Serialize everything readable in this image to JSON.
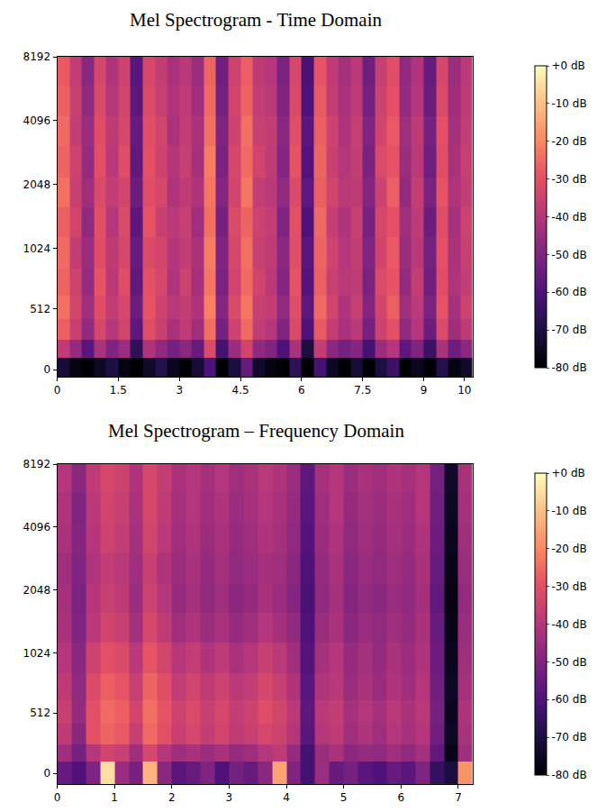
{
  "chart_data": [
    {
      "type": "heatmap",
      "title": "Mel Spectrogram - Time Domain",
      "x_edges": [
        0,
        0.3,
        0.6,
        0.9,
        1.2,
        1.5,
        1.8,
        2.1,
        2.4,
        2.7,
        3,
        3.3,
        3.6,
        3.9,
        4.2,
        4.5,
        4.8,
        5.1,
        5.4,
        5.7,
        6,
        6.3,
        6.6,
        6.9,
        7.2,
        7.5,
        7.8,
        8.1,
        8.4,
        8.7,
        9,
        9.3,
        9.6,
        9.9,
        10.2
      ],
      "y_edges": [
        -60,
        100,
        250,
        420,
        620,
        850,
        1150,
        1600,
        2200,
        3100,
        4300,
        6000,
        8192
      ],
      "z": [
        [
          -72,
          -78,
          -80,
          -75,
          -70,
          -78,
          -80,
          -74,
          -68,
          -76,
          -80,
          -72,
          -60,
          -80,
          -70,
          -55,
          -74,
          -78,
          -80,
          -66,
          -80,
          -62,
          -75,
          -80,
          -72,
          -80,
          -70,
          -64,
          -80,
          -76,
          -80,
          -68,
          -78,
          -74
        ],
        [
          -38,
          -46,
          -58,
          -42,
          -50,
          -45,
          -66,
          -41,
          -47,
          -52,
          -48,
          -55,
          -32,
          -62,
          -45,
          -34,
          -47,
          -50,
          -60,
          -42,
          -70,
          -37,
          -48,
          -52,
          -49,
          -62,
          -45,
          -40,
          -57,
          -50,
          -64,
          -42,
          -54,
          -48
        ],
        [
          -27,
          -36,
          -47,
          -33,
          -40,
          -34,
          -57,
          -31,
          -36,
          -42,
          -38,
          -44,
          -24,
          -52,
          -35,
          -25,
          -37,
          -40,
          -50,
          -32,
          -60,
          -28,
          -37,
          -42,
          -39,
          -52,
          -35,
          -30,
          -47,
          -40,
          -54,
          -32,
          -44,
          -38
        ],
        [
          -24,
          -34,
          -44,
          -31,
          -37,
          -33,
          -54,
          -29,
          -35,
          -39,
          -37,
          -41,
          -21,
          -49,
          -32,
          -23,
          -36,
          -37,
          -47,
          -31,
          -57,
          -25,
          -34,
          -41,
          -36,
          -49,
          -34,
          -27,
          -44,
          -39,
          -51,
          -29,
          -43,
          -35
        ],
        [
          -26,
          -35,
          -46,
          -29,
          -39,
          -31,
          -56,
          -30,
          -33,
          -41,
          -35,
          -43,
          -23,
          -51,
          -34,
          -25,
          -34,
          -39,
          -49,
          -29,
          -59,
          -27,
          -36,
          -39,
          -38,
          -51,
          -32,
          -29,
          -46,
          -37,
          -53,
          -31,
          -41,
          -37
        ],
        [
          -25,
          -37,
          -45,
          -31,
          -38,
          -33,
          -55,
          -32,
          -34,
          -40,
          -37,
          -42,
          -22,
          -50,
          -33,
          -24,
          -36,
          -38,
          -48,
          -31,
          -58,
          -26,
          -35,
          -40,
          -37,
          -50,
          -34,
          -28,
          -45,
          -39,
          -52,
          -30,
          -42,
          -36
        ],
        [
          -27,
          -34,
          -47,
          -30,
          -40,
          -32,
          -57,
          -29,
          -36,
          -39,
          -36,
          -44,
          -24,
          -52,
          -32,
          -26,
          -35,
          -37,
          -50,
          -30,
          -60,
          -25,
          -37,
          -41,
          -36,
          -52,
          -33,
          -30,
          -44,
          -38,
          -54,
          -31,
          -43,
          -35
        ],
        [
          -24,
          -36,
          -44,
          -32,
          -37,
          -34,
          -54,
          -31,
          -33,
          -41,
          -38,
          -41,
          -23,
          -49,
          -34,
          -23,
          -37,
          -39,
          -47,
          -32,
          -57,
          -27,
          -34,
          -39,
          -38,
          -49,
          -35,
          -27,
          -46,
          -37,
          -51,
          -29,
          -41,
          -37
        ],
        [
          -26,
          -35,
          -46,
          -30,
          -39,
          -31,
          -56,
          -30,
          -35,
          -40,
          -36,
          -43,
          -22,
          -51,
          -33,
          -25,
          -34,
          -38,
          -49,
          -29,
          -59,
          -26,
          -36,
          -40,
          -37,
          -51,
          -32,
          -29,
          -45,
          -39,
          -53,
          -31,
          -42,
          -36
        ],
        [
          -25,
          -37,
          -45,
          -31,
          -38,
          -33,
          -55,
          -31,
          -34,
          -42,
          -37,
          -42,
          -24,
          -50,
          -35,
          -24,
          -36,
          -37,
          -48,
          -31,
          -58,
          -27,
          -35,
          -41,
          -36,
          -50,
          -34,
          -28,
          -44,
          -38,
          -52,
          -30,
          -43,
          -37
        ],
        [
          -27,
          -36,
          -47,
          -32,
          -40,
          -34,
          -57,
          -32,
          -36,
          -41,
          -38,
          -44,
          -25,
          -52,
          -34,
          -26,
          -37,
          -39,
          -50,
          -32,
          -60,
          -28,
          -37,
          -42,
          -38,
          -52,
          -35,
          -30,
          -46,
          -40,
          -54,
          -32,
          -44,
          -38
        ],
        [
          -28,
          -37,
          -48,
          -33,
          -41,
          -35,
          -58,
          -33,
          -37,
          -42,
          -39,
          -45,
          -26,
          -53,
          -35,
          -27,
          -38,
          -40,
          -51,
          -33,
          -61,
          -29,
          -38,
          -43,
          -39,
          -53,
          -36,
          -31,
          -47,
          -41,
          -55,
          -33,
          -45,
          -39
        ]
      ],
      "xlim": [
        0,
        10.2
      ],
      "xticks": [
        0,
        1.5,
        3,
        4.5,
        6,
        7.5,
        9,
        10
      ],
      "ylim": [
        -60,
        8192
      ],
      "yticks": [
        0,
        512,
        1024,
        2048,
        4096,
        8192
      ],
      "colorbar_range": [
        -80,
        0
      ],
      "colorbar_ticks": [
        {
          "value": 0,
          "label": "+0 dB"
        },
        {
          "value": -10,
          "label": "-10 dB"
        },
        {
          "value": -20,
          "label": "-20 dB"
        },
        {
          "value": -30,
          "label": "-30 dB"
        },
        {
          "value": -40,
          "label": "-40 dB"
        },
        {
          "value": -50,
          "label": "-50 dB"
        },
        {
          "value": -60,
          "label": "-60 dB"
        },
        {
          "value": -70,
          "label": "-70 dB"
        },
        {
          "value": -80,
          "label": "-80 dB"
        }
      ]
    },
    {
      "type": "heatmap",
      "title": "Mel Spectrogram – Frequency Domain",
      "x_edges": [
        0,
        0.25,
        0.5,
        0.75,
        1,
        1.25,
        1.5,
        1.75,
        2,
        2.25,
        2.5,
        2.75,
        3,
        3.25,
        3.5,
        3.75,
        4,
        4.25,
        4.5,
        4.75,
        5,
        5.25,
        5.5,
        5.75,
        6,
        6.25,
        6.5,
        6.75,
        7,
        7.25
      ],
      "y_edges": [
        -90,
        100,
        250,
        420,
        620,
        850,
        1150,
        1600,
        2200,
        3100,
        4300,
        6000,
        8192
      ],
      "z": [
        [
          -55,
          -60,
          -50,
          -5,
          -45,
          -52,
          -12,
          -48,
          -58,
          -55,
          -50,
          -60,
          -52,
          -55,
          -48,
          -15,
          -50,
          -62,
          -45,
          -55,
          -52,
          -58,
          -60,
          -55,
          -58,
          -50,
          -65,
          -70,
          -18
        ],
        [
          -44,
          -52,
          -40,
          -34,
          -36,
          -44,
          -33,
          -40,
          -44,
          -42,
          -45,
          -42,
          -46,
          -44,
          -40,
          -38,
          -46,
          -62,
          -45,
          -42,
          -48,
          -46,
          -47,
          -44,
          -47,
          -43,
          -56,
          -77,
          -44
        ],
        [
          -38,
          -48,
          -30,
          -26,
          -28,
          -36,
          -25,
          -30,
          -36,
          -33,
          -37,
          -34,
          -38,
          -36,
          -33,
          -35,
          -40,
          -58,
          -40,
          -38,
          -44,
          -41,
          -44,
          -40,
          -43,
          -40,
          -53,
          -75,
          -42
        ],
        [
          -36,
          -46,
          -30,
          -25,
          -27,
          -34,
          -24,
          -29,
          -35,
          -32,
          -36,
          -33,
          -37,
          -35,
          -31,
          -34,
          -39,
          -57,
          -39,
          -37,
          -43,
          -40,
          -43,
          -39,
          -42,
          -39,
          -52,
          -76,
          -41
        ],
        [
          -38,
          -47,
          -32,
          -27,
          -29,
          -36,
          -26,
          -31,
          -37,
          -34,
          -38,
          -35,
          -39,
          -37,
          -33,
          -36,
          -41,
          -58,
          -41,
          -39,
          -45,
          -42,
          -45,
          -41,
          -44,
          -40,
          -53,
          -75,
          -43
        ],
        [
          -40,
          -48,
          -35,
          -30,
          -32,
          -39,
          -29,
          -34,
          -40,
          -37,
          -41,
          -38,
          -42,
          -40,
          -36,
          -39,
          -44,
          -59,
          -43,
          -40,
          -46,
          -43,
          -46,
          -42,
          -45,
          -41,
          -54,
          -76,
          -44
        ],
        [
          -42,
          -50,
          -39,
          -34,
          -36,
          -43,
          -33,
          -38,
          -44,
          -41,
          -45,
          -42,
          -46,
          -44,
          -40,
          -43,
          -47,
          -60,
          -45,
          -42,
          -48,
          -45,
          -47,
          -44,
          -46,
          -42,
          -55,
          -77,
          -45
        ],
        [
          -43,
          -51,
          -40,
          -36,
          -38,
          -45,
          -35,
          -40,
          -46,
          -43,
          -47,
          -44,
          -48,
          -46,
          -42,
          -45,
          -49,
          -61,
          -47,
          -43,
          -49,
          -46,
          -48,
          -45,
          -47,
          -43,
          -56,
          -78,
          -46
        ],
        [
          -44,
          -50,
          -41,
          -37,
          -39,
          -44,
          -36,
          -41,
          -45,
          -42,
          -46,
          -43,
          -47,
          -45,
          -43,
          -44,
          -48,
          -60,
          -46,
          -42,
          -48,
          -45,
          -47,
          -44,
          -46,
          -42,
          -55,
          -77,
          -45
        ],
        [
          -42,
          -49,
          -40,
          -35,
          -37,
          -43,
          -34,
          -39,
          -44,
          -41,
          -45,
          -42,
          -46,
          -44,
          -41,
          -43,
          -47,
          -59,
          -45,
          -41,
          -47,
          -44,
          -46,
          -43,
          -45,
          -41,
          -54,
          -76,
          -44
        ],
        [
          -41,
          -50,
          -39,
          -34,
          -36,
          -42,
          -33,
          -38,
          -43,
          -40,
          -44,
          -41,
          -45,
          -43,
          -40,
          -42,
          -46,
          -58,
          -44,
          -40,
          -46,
          -43,
          -45,
          -42,
          -44,
          -40,
          -53,
          -75,
          -43
        ],
        [
          -40,
          -48,
          -38,
          -33,
          -35,
          -41,
          -33,
          -37,
          -42,
          -40,
          -43,
          -40,
          -44,
          -42,
          -39,
          -41,
          -45,
          -57,
          -43,
          -40,
          -45,
          -42,
          -44,
          -41,
          -43,
          -40,
          -52,
          -74,
          -42
        ]
      ],
      "xlim": [
        0,
        7.25
      ],
      "xticks": [
        0,
        1,
        2,
        3,
        4,
        5,
        6,
        7
      ],
      "ylim": [
        -90,
        8192
      ],
      "yticks": [
        0,
        512,
        1024,
        2048,
        4096,
        8192
      ],
      "colorbar_range": [
        -80,
        0
      ],
      "colorbar_ticks": [
        {
          "value": 0,
          "label": "+0 dB"
        },
        {
          "value": -10,
          "label": "-10 dB"
        },
        {
          "value": -20,
          "label": "-20 dB"
        },
        {
          "value": -30,
          "label": "-30 dB"
        },
        {
          "value": -40,
          "label": "-40 dB"
        },
        {
          "value": -50,
          "label": "-50 dB"
        },
        {
          "value": -60,
          "label": "-60 dB"
        },
        {
          "value": -70,
          "label": "-70 dB"
        },
        {
          "value": -80,
          "label": "-80 dB"
        }
      ]
    }
  ]
}
